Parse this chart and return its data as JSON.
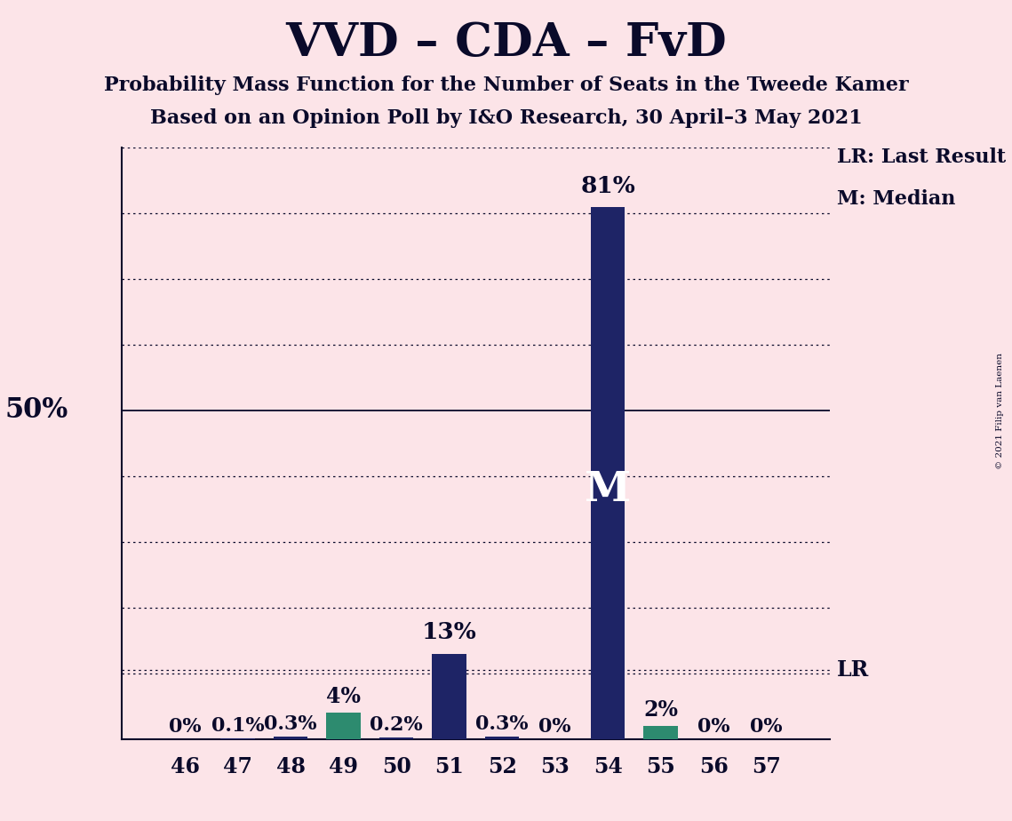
{
  "title": "VVD – CDA – FvD",
  "subtitle1": "Probability Mass Function for the Number of Seats in the Tweede Kamer",
  "subtitle2": "Based on an Opinion Poll by I&O Research, 30 April–3 May 2021",
  "copyright": "© 2021 Filip van Laenen",
  "seats": [
    46,
    47,
    48,
    49,
    50,
    51,
    52,
    53,
    54,
    55,
    56,
    57
  ],
  "values": [
    0.0,
    0.1,
    0.3,
    4.0,
    0.2,
    13.0,
    0.3,
    0.0,
    81.0,
    2.0,
    0.0,
    0.0
  ],
  "labels": [
    "0%",
    "0.1%",
    "0.3%",
    "4%",
    "0.2%",
    "13%",
    "0.3%",
    "0%",
    "81%",
    "2%",
    "0%",
    "0%"
  ],
  "bar_colors": [
    "#1e2466",
    "#1e2466",
    "#1e2466",
    "#2d8b6f",
    "#1e2466",
    "#1e2466",
    "#1e2466",
    "#1e2466",
    "#1e2466",
    "#2d8b6f",
    "#1e2466",
    "#1e2466"
  ],
  "background_color": "#fce4e8",
  "text_color": "#0a0a2a",
  "ylim": [
    0,
    90
  ],
  "ylabel_50": "50%",
  "lr_value": 10.5,
  "median_seat": 54,
  "median_label": "M",
  "lr_label": "LR",
  "legend_lr": "LR: Last Result",
  "legend_m": "M: Median",
  "grid_lines": [
    10,
    20,
    30,
    40,
    50,
    60,
    70,
    80,
    90
  ]
}
